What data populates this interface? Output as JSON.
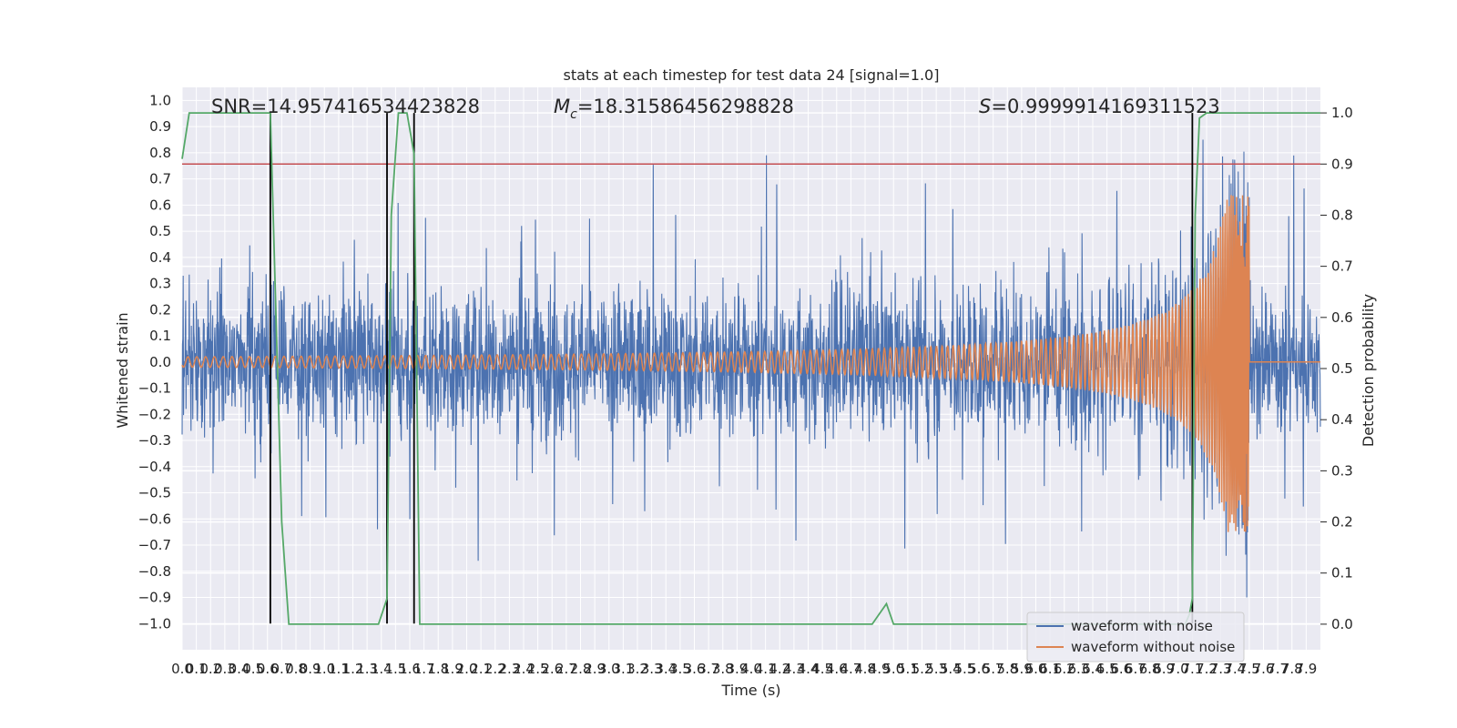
{
  "chart_data": {
    "type": "line",
    "title": "stats at each timestep for test data 24 [signal=1.0]",
    "xlabel": "Time (s)",
    "ylabel": "Whitened strain",
    "ylabel_right": "Detection probability",
    "xlim": [
      0.0,
      8.0
    ],
    "ylim": [
      -1.1,
      1.05
    ],
    "ylim_right": [
      -0.05,
      1.05
    ],
    "xticks": [
      "0.0",
      "0.1",
      "0.2",
      "0.3",
      "0.4",
      "0.5",
      "0.6",
      "0.7",
      "0.8",
      "0.9",
      "1.0",
      "1.1",
      "1.2",
      "1.3",
      "1.4",
      "1.5",
      "1.6",
      "1.7",
      "1.8",
      "1.9",
      "2.0",
      "2.1",
      "2.2",
      "2.3",
      "2.4",
      "2.5",
      "2.6",
      "2.7",
      "2.8",
      "2.9",
      "3.0",
      "3.1",
      "3.2",
      "3.3",
      "3.4",
      "3.5",
      "3.6",
      "3.7",
      "3.8",
      "3.9",
      "4.0",
      "4.1",
      "4.2",
      "4.3",
      "4.4",
      "4.5",
      "4.6",
      "4.7",
      "4.8",
      "4.9",
      "5.0",
      "5.1",
      "5.2",
      "5.3",
      "5.4",
      "5.5",
      "5.6",
      "5.7",
      "5.8",
      "5.9",
      "6.0",
      "6.1",
      "6.2",
      "6.3",
      "6.4",
      "6.5",
      "6.6",
      "6.7",
      "6.8",
      "6.9",
      "7.0",
      "7.1",
      "7.2",
      "7.3",
      "7.4",
      "7.5",
      "7.6",
      "7.7",
      "7.8",
      "7.9"
    ],
    "yticks": [
      "−1.0",
      "−0.9",
      "−0.8",
      "−0.7",
      "−0.6",
      "−0.5",
      "−0.4",
      "−0.3",
      "−0.2",
      "−0.1",
      "0.0",
      "0.1",
      "0.2",
      "0.3",
      "0.4",
      "0.5",
      "0.6",
      "0.7",
      "0.8",
      "0.9",
      "1.0"
    ],
    "yticks_right": [
      "0.0",
      "0.1",
      "0.2",
      "0.3",
      "0.4",
      "0.5",
      "0.6",
      "0.7",
      "0.8",
      "0.9",
      "1.0"
    ],
    "annotations": [
      "SNR=14.957416534423828",
      "=18.31586456298828",
      "=0.9999914169311523"
    ],
    "annotation_symbols": [
      "M",
      "c",
      "S"
    ],
    "legend": [
      "waveform with noise",
      "waveform without noise"
    ],
    "legend_position": "lower right",
    "grid": true,
    "threshold_line": {
      "value": 0.9,
      "axis": "right",
      "color": "#c44e52"
    },
    "vertical_lines_x": [
      0.62,
      1.44,
      1.63,
      7.1
    ],
    "detection_probability": {
      "x": [
        0.0,
        0.05,
        0.1,
        0.2,
        0.3,
        0.4,
        0.5,
        0.6,
        0.62,
        0.65,
        0.7,
        0.75,
        1.3,
        1.38,
        1.44,
        1.47,
        1.52,
        1.58,
        1.63,
        1.67,
        1.75,
        4.8,
        4.85,
        4.9,
        4.95,
        5.0,
        5.1,
        7.0,
        7.05,
        7.08,
        7.1,
        7.12,
        7.15,
        7.2,
        7.3,
        7.5,
        7.9,
        8.0
      ],
      "y": [
        0.91,
        1.0,
        1.0,
        1.0,
        1.0,
        1.0,
        1.0,
        1.0,
        1.0,
        0.7,
        0.2,
        0.0,
        0.0,
        0.0,
        0.05,
        0.8,
        1.0,
        1.0,
        0.92,
        0.0,
        0.0,
        0.0,
        0.0,
        0.02,
        0.04,
        0.0,
        0.0,
        0.0,
        0.0,
        0.02,
        0.05,
        0.8,
        0.99,
        1.0,
        1.0,
        1.0,
        1.0,
        1.0
      ]
    },
    "series": [
      {
        "name": "waveform with noise",
        "color": "#4c72b0",
        "amplitude_range": [
          -0.95,
          0.85
        ]
      },
      {
        "name": "waveform without noise",
        "color": "#dd8452",
        "amplitude_start": 0.02,
        "amplitude_peak": 0.65,
        "merger_time": 7.5
      },
      {
        "name": "detection probability",
        "color": "#55a868"
      }
    ]
  }
}
